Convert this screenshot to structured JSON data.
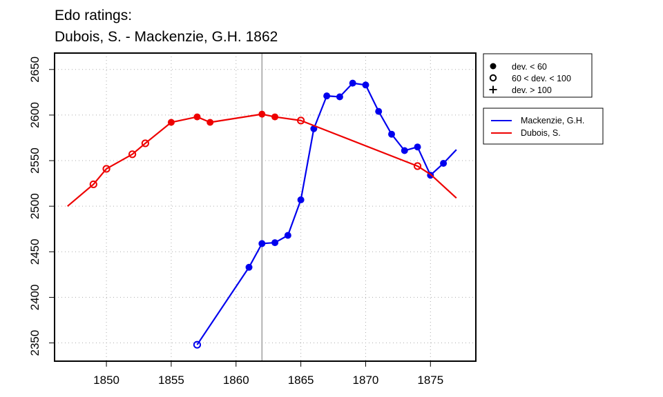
{
  "chart_data": {
    "type": "line",
    "title_line1": "Edo ratings:",
    "title_line2": "Dubois, S. - Mackenzie, G.H. 1862",
    "xlabel": "",
    "ylabel": "",
    "xlim": [
      1846.0,
      1878.5
    ],
    "ylim": [
      2330,
      2668
    ],
    "x_ticks": [
      1850,
      1855,
      1860,
      1865,
      1870,
      1875
    ],
    "y_ticks": [
      2350,
      2400,
      2450,
      2500,
      2550,
      2600,
      2650
    ],
    "grid": true,
    "reference_line_x": 1862,
    "symbol_legend": [
      {
        "symbol": "filled-circle",
        "label": "dev. < 60"
      },
      {
        "symbol": "open-circle",
        "label": "60 < dev. < 100"
      },
      {
        "symbol": "plus",
        "label": "dev. > 100"
      }
    ],
    "series": [
      {
        "name": "Mackenzie, G.H.",
        "color": "#0000ee",
        "line": [
          [
            1857,
            2348
          ],
          [
            1861,
            2433
          ],
          [
            1862,
            2459
          ],
          [
            1863,
            2460
          ],
          [
            1864,
            2468
          ],
          [
            1865,
            2507
          ],
          [
            1866,
            2585
          ],
          [
            1867,
            2621
          ],
          [
            1868,
            2620
          ],
          [
            1869,
            2635
          ],
          [
            1870,
            2633
          ],
          [
            1871,
            2604
          ],
          [
            1872,
            2579
          ],
          [
            1873,
            2561
          ],
          [
            1874,
            2565
          ],
          [
            1875,
            2534
          ],
          [
            1876,
            2547
          ],
          [
            1877,
            2562
          ]
        ],
        "points": [
          {
            "x": 1857,
            "y": 2348,
            "symbol": "open"
          },
          {
            "x": 1861,
            "y": 2433,
            "symbol": "filled"
          },
          {
            "x": 1862,
            "y": 2459,
            "symbol": "filled"
          },
          {
            "x": 1863,
            "y": 2460,
            "symbol": "filled"
          },
          {
            "x": 1864,
            "y": 2468,
            "symbol": "filled"
          },
          {
            "x": 1865,
            "y": 2507,
            "symbol": "filled"
          },
          {
            "x": 1866,
            "y": 2585,
            "symbol": "filled"
          },
          {
            "x": 1867,
            "y": 2621,
            "symbol": "filled"
          },
          {
            "x": 1868,
            "y": 2620,
            "symbol": "filled"
          },
          {
            "x": 1869,
            "y": 2635,
            "symbol": "filled"
          },
          {
            "x": 1870,
            "y": 2633,
            "symbol": "filled"
          },
          {
            "x": 1871,
            "y": 2604,
            "symbol": "filled"
          },
          {
            "x": 1872,
            "y": 2579,
            "symbol": "filled"
          },
          {
            "x": 1873,
            "y": 2561,
            "symbol": "filled"
          },
          {
            "x": 1874,
            "y": 2565,
            "symbol": "filled"
          },
          {
            "x": 1875,
            "y": 2534,
            "symbol": "filled"
          },
          {
            "x": 1876,
            "y": 2547,
            "symbol": "filled"
          }
        ]
      },
      {
        "name": "Dubois, S.",
        "color": "#ee0000",
        "line": [
          [
            1847,
            2500
          ],
          [
            1849,
            2524
          ],
          [
            1850,
            2541
          ],
          [
            1852,
            2557
          ],
          [
            1853,
            2569
          ],
          [
            1855,
            2592
          ],
          [
            1857,
            2598
          ],
          [
            1858,
            2592
          ],
          [
            1862,
            2601
          ],
          [
            1863,
            2598
          ],
          [
            1865,
            2594
          ],
          [
            1874,
            2544
          ],
          [
            1875,
            2535
          ],
          [
            1877,
            2509
          ]
        ],
        "points": [
          {
            "x": 1849,
            "y": 2524,
            "symbol": "open"
          },
          {
            "x": 1850,
            "y": 2541,
            "symbol": "open"
          },
          {
            "x": 1852,
            "y": 2557,
            "symbol": "open"
          },
          {
            "x": 1853,
            "y": 2569,
            "symbol": "open"
          },
          {
            "x": 1855,
            "y": 2592,
            "symbol": "filled"
          },
          {
            "x": 1857,
            "y": 2598,
            "symbol": "filled"
          },
          {
            "x": 1858,
            "y": 2592,
            "symbol": "filled"
          },
          {
            "x": 1862,
            "y": 2601,
            "symbol": "filled"
          },
          {
            "x": 1863,
            "y": 2598,
            "symbol": "filled"
          },
          {
            "x": 1865,
            "y": 2594,
            "symbol": "open"
          },
          {
            "x": 1874,
            "y": 2544,
            "symbol": "open"
          }
        ]
      }
    ]
  }
}
